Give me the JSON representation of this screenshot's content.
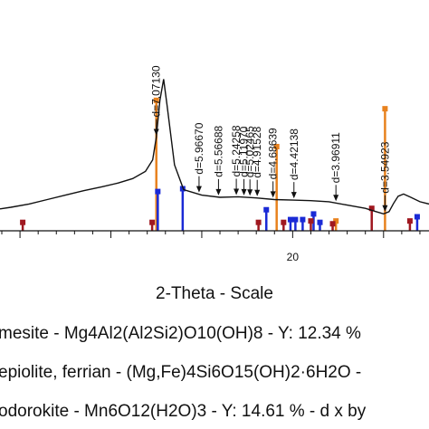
{
  "chart_data": {
    "type": "line",
    "title": "",
    "xlabel": "2-Theta - Scale",
    "ylabel": "",
    "xlim": [
      3.9,
      27.5
    ],
    "x_ticks": [
      20
    ],
    "x_tick_labels": [
      "20"
    ],
    "series": [
      {
        "x": [
          3.9,
          4.5,
          5.5,
          6.5,
          7.5,
          8.5,
          9.5,
          10.4,
          11.2,
          11.9,
          12.3,
          12.5,
          12.7,
          12.9,
          13.1,
          13.5,
          14.0,
          15.0,
          16.0,
          17.0,
          18.0,
          19.0,
          20.0,
          21.0,
          22.0,
          23.0,
          24.0,
          24.6,
          25.0,
          25.3,
          25.55,
          25.8,
          26.1,
          26.5,
          27.0,
          27.5
        ],
        "y": [
          215,
          218,
          224,
          232,
          240,
          248,
          255,
          262,
          270,
          283,
          304,
          345,
          412,
          450,
          400,
          295,
          250,
          240,
          236,
          237,
          235,
          232,
          231,
          230,
          228,
          222,
          216,
          210,
          206,
          210,
          225,
          238,
          242,
          236,
          228,
          224
        ]
      }
    ],
    "peak_annotations": [
      {
        "label": "d=7.07130",
        "x": 12.5
      },
      {
        "label": "d=5.96670",
        "x": 14.85
      },
      {
        "label": "d=5.56688",
        "x": 15.92
      },
      {
        "label": "d=5.24258",
        "x": 16.9
      },
      {
        "label": "d=5.11970",
        "x": 17.32
      },
      {
        "label": "d=5.02465",
        "x": 17.65
      },
      {
        "label": "d=4.91528",
        "x": 18.05
      },
      {
        "label": "d=4.68639",
        "x": 18.92
      },
      {
        "label": "d=4.42138",
        "x": 20.07
      },
      {
        "label": "d=3.96911",
        "x": 22.38
      },
      {
        "label": "d=3.54923",
        "x": 25.08
      }
    ],
    "reference_phases": [
      {
        "label": "esite - Mg4Al2(Al2Si2)O10(OH)8 - Y: 12.34 %",
        "color": "#e8821e",
        "sticks": [
          {
            "x": 12.5,
            "h": 0.93
          },
          {
            "x": 19.12,
            "h": 0.6
          },
          {
            "x": 22.38,
            "h": 0.07
          },
          {
            "x": 25.08,
            "h": 0.87
          }
        ]
      },
      {
        "label": "epiolite, ferrian - (Mg,Fe)4Si6O15(OH)2·6H2O -",
        "color": "#1a2ad6",
        "sticks": [
          {
            "x": 12.58,
            "h": 0.28
          },
          {
            "x": 13.95,
            "h": 0.3
          },
          {
            "x": 18.55,
            "h": 0.15
          },
          {
            "x": 19.88,
            "h": 0.08
          },
          {
            "x": 20.15,
            "h": 0.08
          },
          {
            "x": 20.55,
            "h": 0.08
          },
          {
            "x": 21.15,
            "h": 0.12
          },
          {
            "x": 21.5,
            "h": 0.06
          },
          {
            "x": 26.85,
            "h": 0.1
          }
        ]
      },
      {
        "label": "odorokite - Mn6O12(H2O)3 - Y: 14.61 % - d x by",
        "color": "#a01820",
        "sticks": [
          {
            "x": 5.15,
            "h": 0.06
          },
          {
            "x": 12.27,
            "h": 0.06
          },
          {
            "x": 18.12,
            "h": 0.06
          },
          {
            "x": 19.5,
            "h": 0.06
          },
          {
            "x": 21.0,
            "h": 0.07
          },
          {
            "x": 22.2,
            "h": 0.05
          },
          {
            "x": 24.35,
            "h": 0.16
          },
          {
            "x": 26.45,
            "h": 0.07
          }
        ]
      }
    ],
    "legend": [
      "mesite - Mg4Al2(Al2Si2)O10(OH)8 - Y: 12.34 %",
      "epiolite, ferrian - (Mg,Fe)4Si6O15(OH)2·6H2O -",
      "odorokite - Mn6O12(H2O)3 - Y: 14.61 % - d x by"
    ],
    "legend_colors": [
      "#e8821e",
      "#1a2ad6",
      "#a01820"
    ]
  }
}
